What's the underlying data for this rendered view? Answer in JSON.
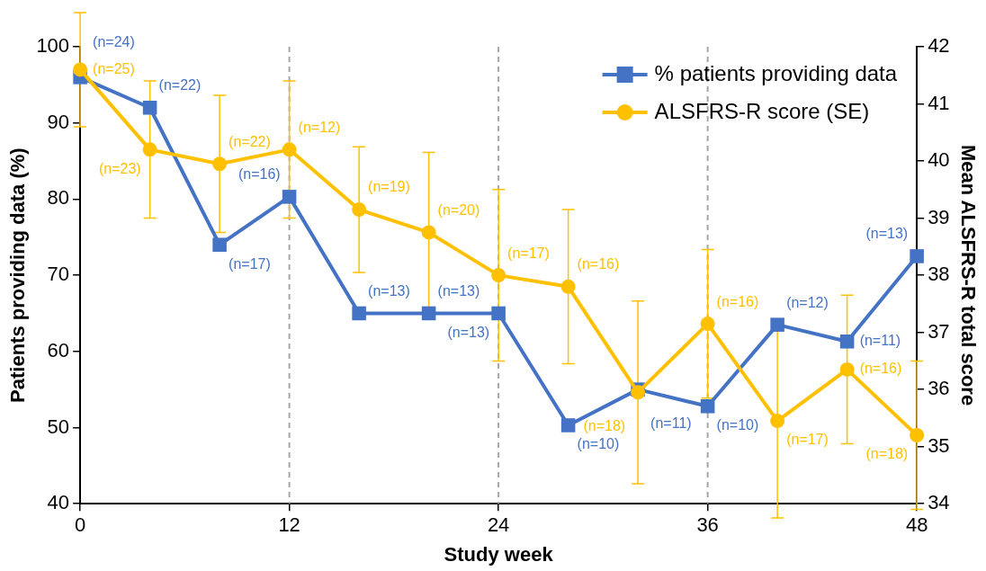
{
  "chart_data": {
    "type": "line",
    "xlabel": "Study week",
    "ylabel": "Patients providing data (%)",
    "y2label": "Mean ALSFRS-R total score",
    "x": [
      0,
      4,
      8,
      12,
      16,
      20,
      24,
      28,
      32,
      36,
      40,
      44,
      48
    ],
    "xlim": [
      0,
      48
    ],
    "xticks": [
      0,
      12,
      24,
      36,
      48
    ],
    "ylim": [
      40,
      100
    ],
    "yticks": [
      40,
      50,
      60,
      70,
      80,
      90,
      100
    ],
    "y2lim": [
      34,
      42
    ],
    "y2ticks": [
      34,
      35,
      36,
      37,
      38,
      39,
      40,
      41,
      42
    ],
    "series": [
      {
        "name": "% patients providing data",
        "color": "#4472c4",
        "marker": "square",
        "values": [
          96,
          92,
          74,
          80.3,
          65,
          65,
          65,
          50.3,
          55,
          52.8,
          63.5,
          61.3,
          72.5
        ]
      },
      {
        "name": "ALSFRS-R score (SE)",
        "color": "#ffc000",
        "marker": "circle",
        "axis": "y2",
        "values": [
          41.6,
          40.2,
          39.95,
          40.2,
          39.15,
          38.75,
          38.0,
          37.8,
          35.95,
          37.15,
          35.45,
          36.35,
          35.2
        ],
        "errors": [
          1.0,
          1.2,
          1.2,
          1.2,
          1.1,
          1.4,
          1.5,
          1.35,
          1.6,
          1.3,
          1.7,
          1.3,
          1.3
        ]
      }
    ],
    "annotations": [
      {
        "text": "(n=24)",
        "x": 0,
        "y": 96
      },
      {
        "text": "(n=22)",
        "x": 4,
        "y": 92
      },
      {
        "text": "(n=17)",
        "x": 8,
        "y": 74
      },
      {
        "text": "(n=16)",
        "x": 12,
        "y": 80.3
      },
      {
        "text": "(n=13)",
        "x": 16,
        "y": 65
      },
      {
        "text": "(n=13)",
        "x": 20,
        "y": 65
      },
      {
        "text": "(n=13)",
        "x": 24,
        "y": 65
      },
      {
        "text": "(n=10)",
        "x": 28,
        "y": 50.3
      },
      {
        "text": "(n=11)",
        "x": 32,
        "y": 55
      },
      {
        "text": "(n=10)",
        "x": 36,
        "y": 52.8
      },
      {
        "text": "(n=12)",
        "x": 40,
        "y": 63.5
      },
      {
        "text": "(n=11)",
        "x": 44,
        "y": 61.3
      },
      {
        "text": "(n=13)",
        "x": 48,
        "y": 72.5
      },
      "(n=25)",
      "(n=23)",
      "(n=22)",
      "(n=12)",
      "(n=19)",
      "(n=20)",
      "(n=17)",
      "(n=16)",
      "(n=18)",
      "(n=16)",
      "(n=17)",
      "(n=16)",
      "(n=18)"
    ],
    "ref_lines": [
      {
        "axis": "x",
        "value": 12,
        "color": "#a6a6a6",
        "line_style": "dashed"
      },
      {
        "axis": "x",
        "value": 24,
        "color": "#a6a6a6",
        "line_style": "dashed"
      },
      {
        "axis": "x",
        "value": 36,
        "color": "#a6a6a6",
        "line_style": "dashed"
      }
    ],
    "grid": false,
    "legend": "top right",
    "line_style": "solid"
  }
}
